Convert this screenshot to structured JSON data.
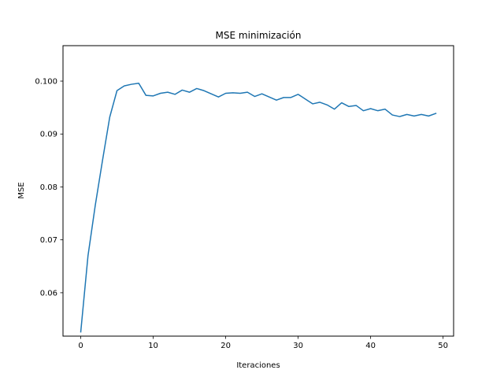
{
  "chart_data": {
    "type": "line",
    "title": "MSE minimización",
    "xlabel": "Iteraciones",
    "ylabel": "MSE",
    "xlim": [
      -2.45,
      51.45
    ],
    "ylim": [
      0.0518,
      0.1067
    ],
    "xticks": [
      0,
      10,
      20,
      30,
      40,
      50
    ],
    "xtick_labels": [
      "0",
      "10",
      "20",
      "30",
      "40",
      "50"
    ],
    "yticks": [
      0.06,
      0.07,
      0.08,
      0.09,
      0.1
    ],
    "ytick_labels": [
      "0.06",
      "0.07",
      "0.08",
      "0.09",
      "0.100"
    ],
    "grid": false,
    "legend": "none",
    "series": [
      {
        "color": "#1f77b4",
        "x": [
          0,
          1,
          2,
          3,
          4,
          5,
          6,
          7,
          8,
          9,
          10,
          11,
          12,
          13,
          14,
          15,
          16,
          17,
          18,
          19,
          20,
          21,
          22,
          23,
          24,
          25,
          26,
          27,
          28,
          29,
          30,
          31,
          32,
          33,
          34,
          35,
          36,
          37,
          38,
          39,
          40,
          41,
          42,
          43,
          44,
          45,
          46,
          47,
          48,
          49
        ],
        "y": [
          0.0526,
          0.067,
          0.0765,
          0.085,
          0.0932,
          0.0982,
          0.0991,
          0.0994,
          0.0996,
          0.0973,
          0.0972,
          0.0977,
          0.0979,
          0.0975,
          0.0983,
          0.0979,
          0.0986,
          0.0982,
          0.0976,
          0.097,
          0.0977,
          0.0978,
          0.0977,
          0.0979,
          0.0971,
          0.0976,
          0.097,
          0.0964,
          0.0969,
          0.0969,
          0.0975,
          0.0966,
          0.0957,
          0.096,
          0.0955,
          0.0947,
          0.0959,
          0.0952,
          0.0954,
          0.0944,
          0.0948,
          0.0944,
          0.0947,
          0.0936,
          0.0933,
          0.0937,
          0.0934,
          0.0937,
          0.0934,
          0.0939
        ]
      }
    ]
  }
}
